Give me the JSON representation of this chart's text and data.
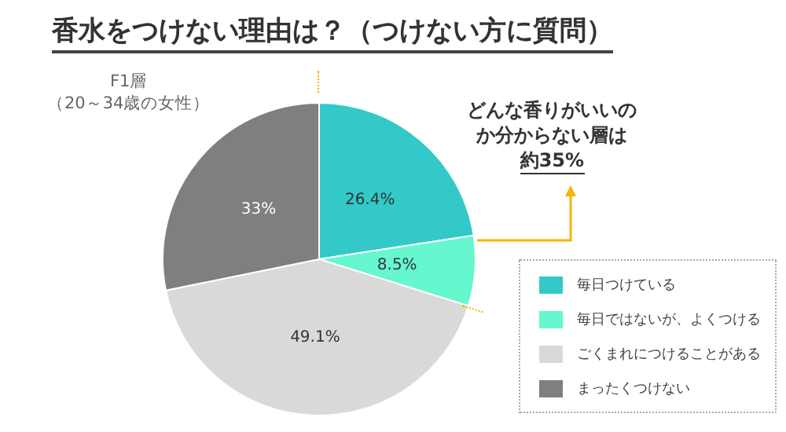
{
  "chart_data": {
    "type": "pie",
    "title": "香水をつけない理由は？（つけない方に質問）",
    "categories": [
      "毎日つけている",
      "毎日ではないが、よくつける",
      "ごくまれにつけることがある",
      "まったくつけない"
    ],
    "values": [
      26.4,
      8.5,
      49.1,
      33
    ],
    "colors": [
      "#33c9c9",
      "#66f7cf",
      "#d9d9d9",
      "#7f7f7f"
    ],
    "value_labels": [
      "26.4%",
      "8.5%",
      "49.1%",
      "33%"
    ],
    "legend": "bottom right",
    "annotations": [
      "F1層",
      "（20～34歳の女性）",
      "どんな香りがいいのか分からない層は",
      "約35%"
    ]
  }
}
